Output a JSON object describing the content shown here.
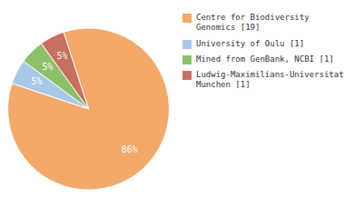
{
  "chart_data": {
    "type": "pie",
    "categories": [
      "Centre for Biodiversity\nGenomics [19]",
      "University of Oulu [1]",
      "Mined from GenBank, NCBI [1]",
      "Ludwig-Maximilians-Universitat\nMunchen [1]"
    ],
    "values": [
      86,
      5,
      5,
      5
    ],
    "value_labels": [
      "86%",
      "5%",
      "5%",
      "5%"
    ],
    "colors": [
      "#F2A96A",
      "#A8C8E8",
      "#8DC06A",
      "#C87060"
    ],
    "data_labels": true,
    "legend": "right"
  }
}
